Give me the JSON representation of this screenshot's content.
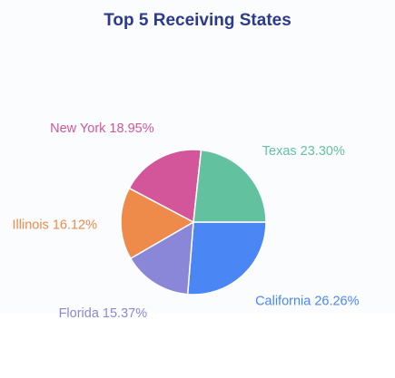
{
  "chart_data": {
    "type": "pie",
    "title": "Top 5 Receiving States",
    "slices": [
      {
        "label": "California",
        "value": 26.26,
        "display": "California 26.26%",
        "color": "#4a87f5"
      },
      {
        "label": "Florida",
        "value": 15.37,
        "display": "Florida 15.37%",
        "color": "#8a86d8"
      },
      {
        "label": "Illinois",
        "value": 16.12,
        "display": "Illinois 16.12%",
        "color": "#ee8a4a"
      },
      {
        "label": "New York",
        "value": 18.95,
        "display": "New York 18.95%",
        "color": "#d3569a"
      },
      {
        "label": "Texas",
        "value": 23.3,
        "display": "Texas 23.30%",
        "color": "#62c2a0"
      }
    ],
    "start_angle_deg": 0,
    "direction": "clockwise-from-east",
    "title_color": "#2c3a8c"
  }
}
